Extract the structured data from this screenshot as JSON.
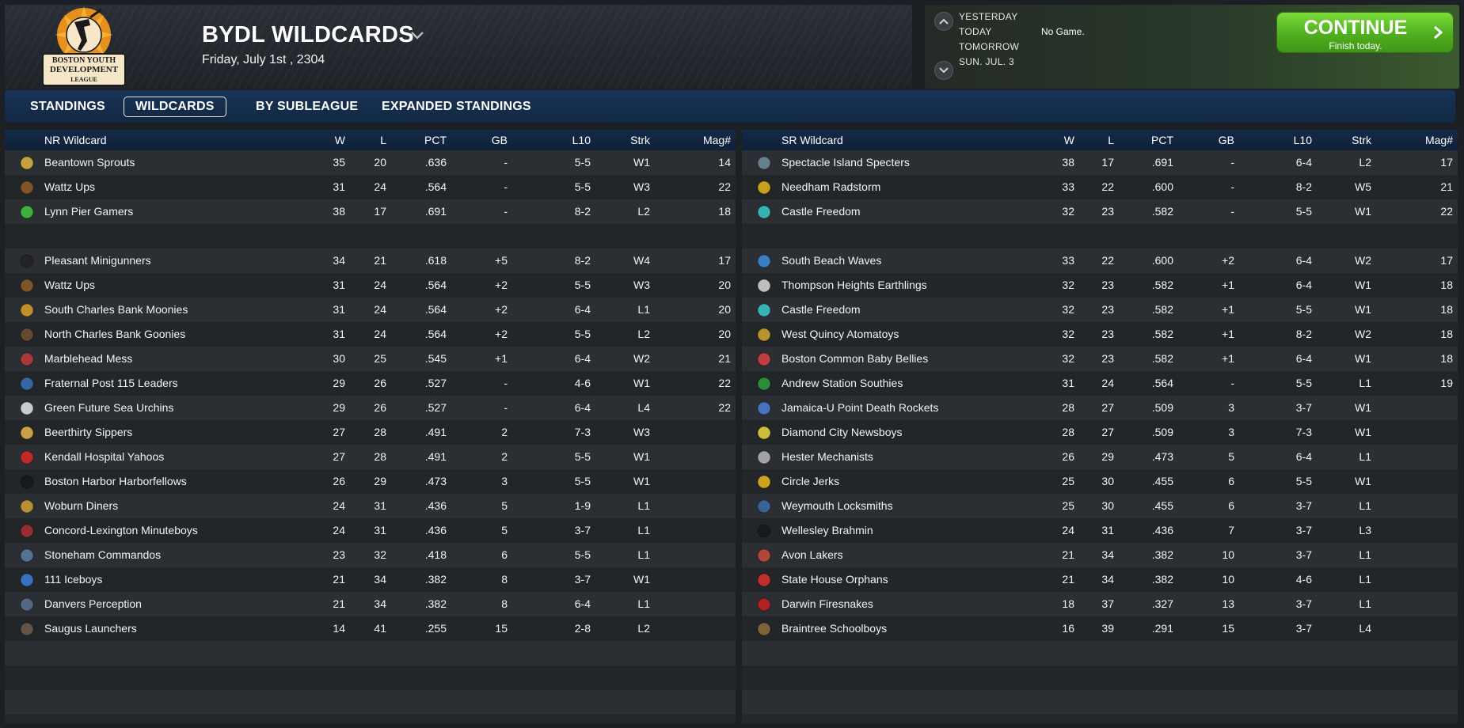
{
  "header": {
    "title": "BYDL WILDCARDS",
    "date": "Friday, July 1st , 2304",
    "logo_text": [
      "BOSTON YOUTH",
      "DEVELOPMENT",
      "LEAGUE"
    ]
  },
  "game_panel": {
    "days": [
      "YESTERDAY",
      "TODAY",
      "TOMORROW",
      "SUN. JUL. 3"
    ],
    "today_status": "No Game.",
    "continue_label": "CONTINUE",
    "continue_sub": "Finish today."
  },
  "tabs": [
    {
      "label": "STANDINGS",
      "active": false
    },
    {
      "label": "WILDCARDS",
      "active": true
    },
    {
      "label": "BY SUBLEAGUE",
      "active": false
    },
    {
      "label": "EXPANDED STANDINGS",
      "active": false
    }
  ],
  "columns": {
    "w": "W",
    "l": "L",
    "pct": "PCT",
    "gb": "GB",
    "l10": "L10",
    "strk": "Strk",
    "mag": "Mag#"
  },
  "left_table": {
    "title": "NR  Wildcard",
    "leaders": [
      {
        "team": "Beantown Sprouts",
        "w": "35",
        "l": "20",
        "pct": ".636",
        "gb": "-",
        "l10": "5-5",
        "strk": "W1",
        "mag": "14",
        "icon": "sprout-icon",
        "color": "#d6b040"
      },
      {
        "team": "Wattz Ups",
        "w": "31",
        "l": "24",
        "pct": ".564",
        "gb": "-",
        "l10": "5-5",
        "strk": "W3",
        "mag": "22",
        "icon": "ups-shield-icon",
        "color": "#8a5a2b"
      },
      {
        "team": "Lynn Pier Gamers",
        "w": "38",
        "l": "17",
        "pct": ".691",
        "gb": "-",
        "l10": "8-2",
        "strk": "L2",
        "mag": "18",
        "icon": "gamer-icon",
        "color": "#3fbf3f"
      }
    ],
    "rows": [
      {
        "team": "Pleasant Minigunners",
        "w": "34",
        "l": "21",
        "pct": ".618",
        "gb": "+5",
        "l10": "8-2",
        "strk": "W4",
        "mag": "17",
        "icon": "minigun-icon",
        "color": "#222222"
      },
      {
        "team": "Wattz Ups",
        "w": "31",
        "l": "24",
        "pct": ".564",
        "gb": "+2",
        "l10": "5-5",
        "strk": "W3",
        "mag": "20",
        "icon": "ups-shield-icon",
        "color": "#8a5a2b"
      },
      {
        "team": "South Charles Bank Moonies",
        "w": "31",
        "l": "24",
        "pct": ".564",
        "gb": "+2",
        "l10": "6-4",
        "strk": "L1",
        "mag": "20",
        "icon": "moon-icon",
        "color": "#d49a2a"
      },
      {
        "team": "North Charles Bank Goonies",
        "w": "31",
        "l": "24",
        "pct": ".564",
        "gb": "+2",
        "l10": "5-5",
        "strk": "L2",
        "mag": "20",
        "icon": "goon-icon",
        "color": "#6a5030"
      },
      {
        "team": "Marblehead Mess",
        "w": "30",
        "l": "25",
        "pct": ".545",
        "gb": "+1",
        "l10": "6-4",
        "strk": "W2",
        "mag": "21",
        "icon": "mess-icon",
        "color": "#b83a3a"
      },
      {
        "team": "Fraternal Post 115 Leaders",
        "w": "29",
        "l": "26",
        "pct": ".527",
        "gb": "-",
        "l10": "4-6",
        "strk": "W1",
        "mag": "22",
        "icon": "leader-icon",
        "color": "#3a6fb0"
      },
      {
        "team": "Green Future Sea Urchins",
        "w": "29",
        "l": "26",
        "pct": ".527",
        "gb": "-",
        "l10": "6-4",
        "strk": "L4",
        "mag": "22",
        "icon": "urchin-icon",
        "color": "#dddddd"
      },
      {
        "team": "Beerthirty Sippers",
        "w": "27",
        "l": "28",
        "pct": ".491",
        "gb": "2",
        "l10": "7-3",
        "strk": "W3",
        "mag": "",
        "icon": "beer-icon",
        "color": "#d9b04a"
      },
      {
        "team": "Kendall Hospital Yahoos",
        "w": "27",
        "l": "28",
        "pct": ".491",
        "gb": "2",
        "l10": "5-5",
        "strk": "W1",
        "mag": "",
        "icon": "yahoo-icon",
        "color": "#d02a2a"
      },
      {
        "team": "Boston Harbor Harborfellows",
        "w": "26",
        "l": "29",
        "pct": ".473",
        "gb": "3",
        "l10": "5-5",
        "strk": "W1",
        "mag": "",
        "icon": "harbor-icon",
        "color": "#1a1a1a"
      },
      {
        "team": "Woburn Diners",
        "w": "24",
        "l": "31",
        "pct": ".436",
        "gb": "5",
        "l10": "1-9",
        "strk": "L1",
        "mag": "",
        "icon": "diner-icon",
        "color": "#c79a3a"
      },
      {
        "team": "Concord-Lexington Minuteboys",
        "w": "24",
        "l": "31",
        "pct": ".436",
        "gb": "5",
        "l10": "3-7",
        "strk": "L1",
        "mag": "",
        "icon": "minuteboy-icon",
        "color": "#a33030"
      },
      {
        "team": "Stoneham Commandos",
        "w": "23",
        "l": "32",
        "pct": ".418",
        "gb": "6",
        "l10": "5-5",
        "strk": "L1",
        "mag": "",
        "icon": "commando-icon",
        "color": "#5a7a9a"
      },
      {
        "team": "111 Iceboys",
        "w": "21",
        "l": "34",
        "pct": ".382",
        "gb": "8",
        "l10": "3-7",
        "strk": "W1",
        "mag": "",
        "icon": "ice-icon",
        "color": "#3a7ad0"
      },
      {
        "team": "Danvers Perception",
        "w": "21",
        "l": "34",
        "pct": ".382",
        "gb": "8",
        "l10": "6-4",
        "strk": "L1",
        "mag": "",
        "icon": "perception-icon",
        "color": "#5a6f8a"
      },
      {
        "team": "Saugus Launchers",
        "w": "14",
        "l": "41",
        "pct": ".255",
        "gb": "15",
        "l10": "2-8",
        "strk": "L2",
        "mag": "",
        "icon": "launcher-icon",
        "color": "#6a5a4a"
      }
    ]
  },
  "right_table": {
    "title": "SR  Wildcard",
    "leaders": [
      {
        "team": "Spectacle Island Specters",
        "w": "38",
        "l": "17",
        "pct": ".691",
        "gb": "-",
        "l10": "6-4",
        "strk": "L2",
        "mag": "17",
        "icon": "specter-icon",
        "color": "#6a8a9a"
      },
      {
        "team": "Needham Radstorm",
        "w": "33",
        "l": "22",
        "pct": ".600",
        "gb": "-",
        "l10": "8-2",
        "strk": "W5",
        "mag": "21",
        "icon": "radiation-icon",
        "color": "#d9b020"
      },
      {
        "team": "Castle Freedom",
        "w": "32",
        "l": "23",
        "pct": ".582",
        "gb": "-",
        "l10": "5-5",
        "strk": "W1",
        "mag": "22",
        "icon": "castle-icon",
        "color": "#3ac0c0"
      }
    ],
    "rows": [
      {
        "team": "South Beach Waves",
        "w": "33",
        "l": "22",
        "pct": ".600",
        "gb": "+2",
        "l10": "6-4",
        "strk": "W2",
        "mag": "17",
        "icon": "wave-icon",
        "color": "#3a8ad0"
      },
      {
        "team": "Thompson Heights Earthlings",
        "w": "32",
        "l": "23",
        "pct": ".582",
        "gb": "+1",
        "l10": "6-4",
        "strk": "W1",
        "mag": "18",
        "icon": "earthling-icon",
        "color": "#cfcfcf"
      },
      {
        "team": "Castle Freedom",
        "w": "32",
        "l": "23",
        "pct": ".582",
        "gb": "+1",
        "l10": "5-5",
        "strk": "W1",
        "mag": "18",
        "icon": "castle-icon",
        "color": "#3ac0c0"
      },
      {
        "team": "West Quincy Atomatoys",
        "w": "32",
        "l": "23",
        "pct": ".582",
        "gb": "+1",
        "l10": "8-2",
        "strk": "W2",
        "mag": "18",
        "icon": "atom-icon",
        "color": "#c9a030"
      },
      {
        "team": "Boston Common Baby Bellies",
        "w": "32",
        "l": "23",
        "pct": ".582",
        "gb": "+1",
        "l10": "6-4",
        "strk": "W1",
        "mag": "18",
        "icon": "baby-icon",
        "color": "#d04040"
      },
      {
        "team": "Andrew Station Southies",
        "w": "31",
        "l": "24",
        "pct": ".564",
        "gb": "-",
        "l10": "5-5",
        "strk": "L1",
        "mag": "19",
        "icon": "irish-flag-icon",
        "color": "#2a9a3a"
      },
      {
        "team": "Jamaica-U Point Death Rockets",
        "w": "28",
        "l": "27",
        "pct": ".509",
        "gb": "3",
        "l10": "3-7",
        "strk": "W1",
        "mag": "",
        "icon": "rocket-icon",
        "color": "#4a7ad0"
      },
      {
        "team": "Diamond City Newsboys",
        "w": "28",
        "l": "27",
        "pct": ".509",
        "gb": "3",
        "l10": "7-3",
        "strk": "W1",
        "mag": "",
        "icon": "newspaper-icon",
        "color": "#e0d040"
      },
      {
        "team": "Hester Mechanists",
        "w": "26",
        "l": "29",
        "pct": ".473",
        "gb": "5",
        "l10": "6-4",
        "strk": "L1",
        "mag": "",
        "icon": "robot-icon",
        "color": "#b0b0b0"
      },
      {
        "team": "Circle Jerks",
        "w": "25",
        "l": "30",
        "pct": ".455",
        "gb": "6",
        "l10": "5-5",
        "strk": "W1",
        "mag": "",
        "icon": "circle-icon",
        "color": "#e0b020"
      },
      {
        "team": "Weymouth Locksmiths",
        "w": "25",
        "l": "30",
        "pct": ".455",
        "gb": "6",
        "l10": "3-7",
        "strk": "L1",
        "mag": "",
        "icon": "locksmith-icon",
        "color": "#3a6aa0"
      },
      {
        "team": "Wellesley Brahmin",
        "w": "24",
        "l": "31",
        "pct": ".436",
        "gb": "7",
        "l10": "3-7",
        "strk": "L3",
        "mag": "",
        "icon": "brahmin-icon",
        "color": "#1a1a1a"
      },
      {
        "team": "Avon Lakers",
        "w": "21",
        "l": "34",
        "pct": ".382",
        "gb": "10",
        "l10": "3-7",
        "strk": "L1",
        "mag": "",
        "icon": "laker-icon",
        "color": "#c04a3a"
      },
      {
        "team": "State House Orphans",
        "w": "21",
        "l": "34",
        "pct": ".382",
        "gb": "10",
        "l10": "4-6",
        "strk": "L1",
        "mag": "",
        "icon": "orphan-icon",
        "color": "#d03030"
      },
      {
        "team": "Darwin Firesnakes",
        "w": "18",
        "l": "37",
        "pct": ".327",
        "gb": "13",
        "l10": "3-7",
        "strk": "L1",
        "mag": "",
        "icon": "firesnake-icon",
        "color": "#c02020"
      },
      {
        "team": "Braintree Schoolboys",
        "w": "16",
        "l": "39",
        "pct": ".291",
        "gb": "15",
        "l10": "3-7",
        "strk": "L4",
        "mag": "",
        "icon": "schoolboy-icon",
        "color": "#8a6a3a"
      }
    ]
  }
}
